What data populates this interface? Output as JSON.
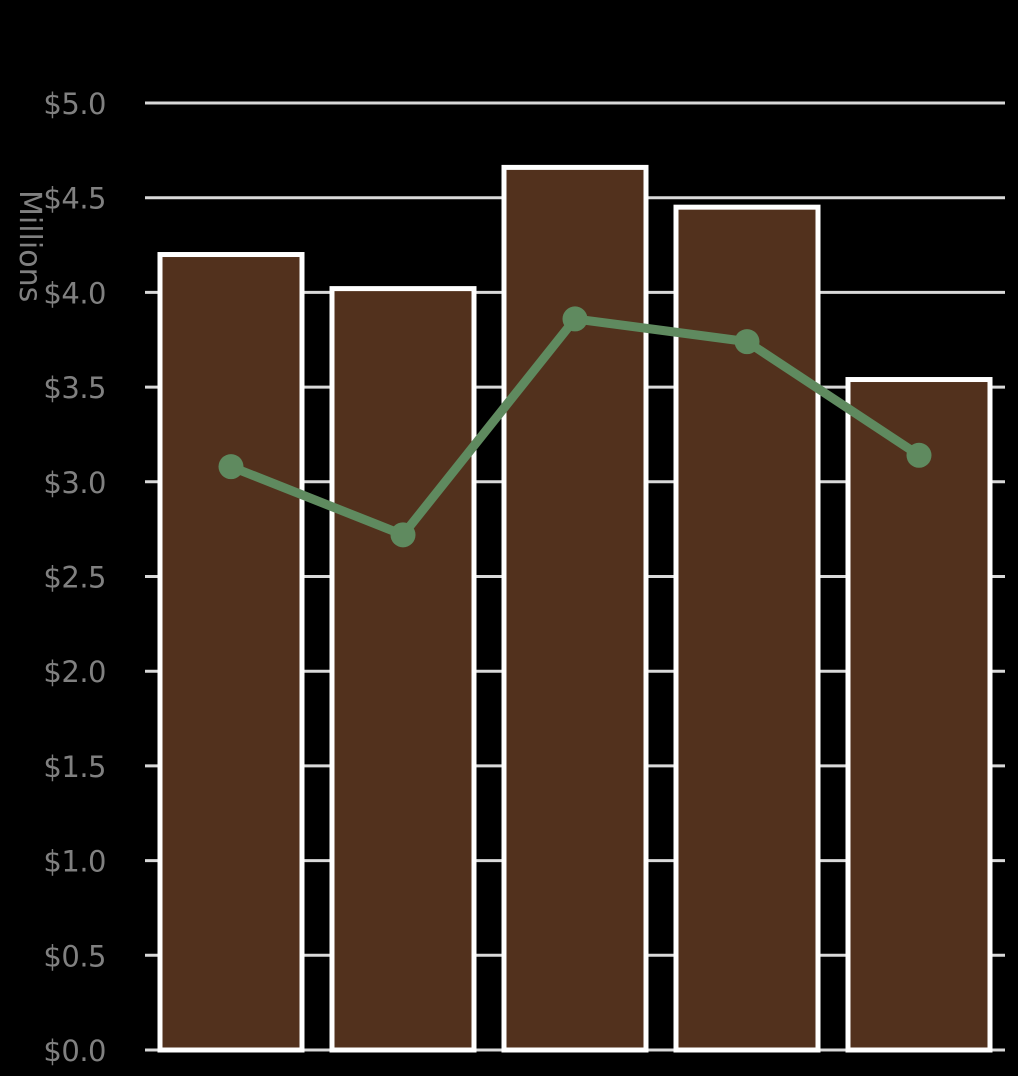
{
  "chart_data": {
    "type": "bar",
    "title": "",
    "xlabel": "",
    "ylabel": "Millions",
    "ylim": [
      0,
      5
    ],
    "y_ticks": [
      "$0.0",
      "$0.5",
      "$1.0",
      "$1.5",
      "$2.0",
      "$2.5",
      "$3.0",
      "$3.5",
      "$4.0",
      "$4.5",
      "$5.0"
    ],
    "grid": true,
    "legend": "none",
    "series": [
      {
        "type": "bar",
        "color": "#52311d",
        "values": [
          4.2,
          4.02,
          4.66,
          4.45,
          3.54
        ]
      },
      {
        "type": "line",
        "color": "#5f8a5f",
        "values": [
          3.08,
          2.72,
          3.86,
          3.74,
          3.14
        ]
      }
    ]
  },
  "colors": {
    "background": "#000000",
    "bar_fill": "#52311d",
    "bar_outline": "#ffffff",
    "line": "#5f8a5f",
    "grid": "#d9d9d9",
    "text": "#808080"
  }
}
